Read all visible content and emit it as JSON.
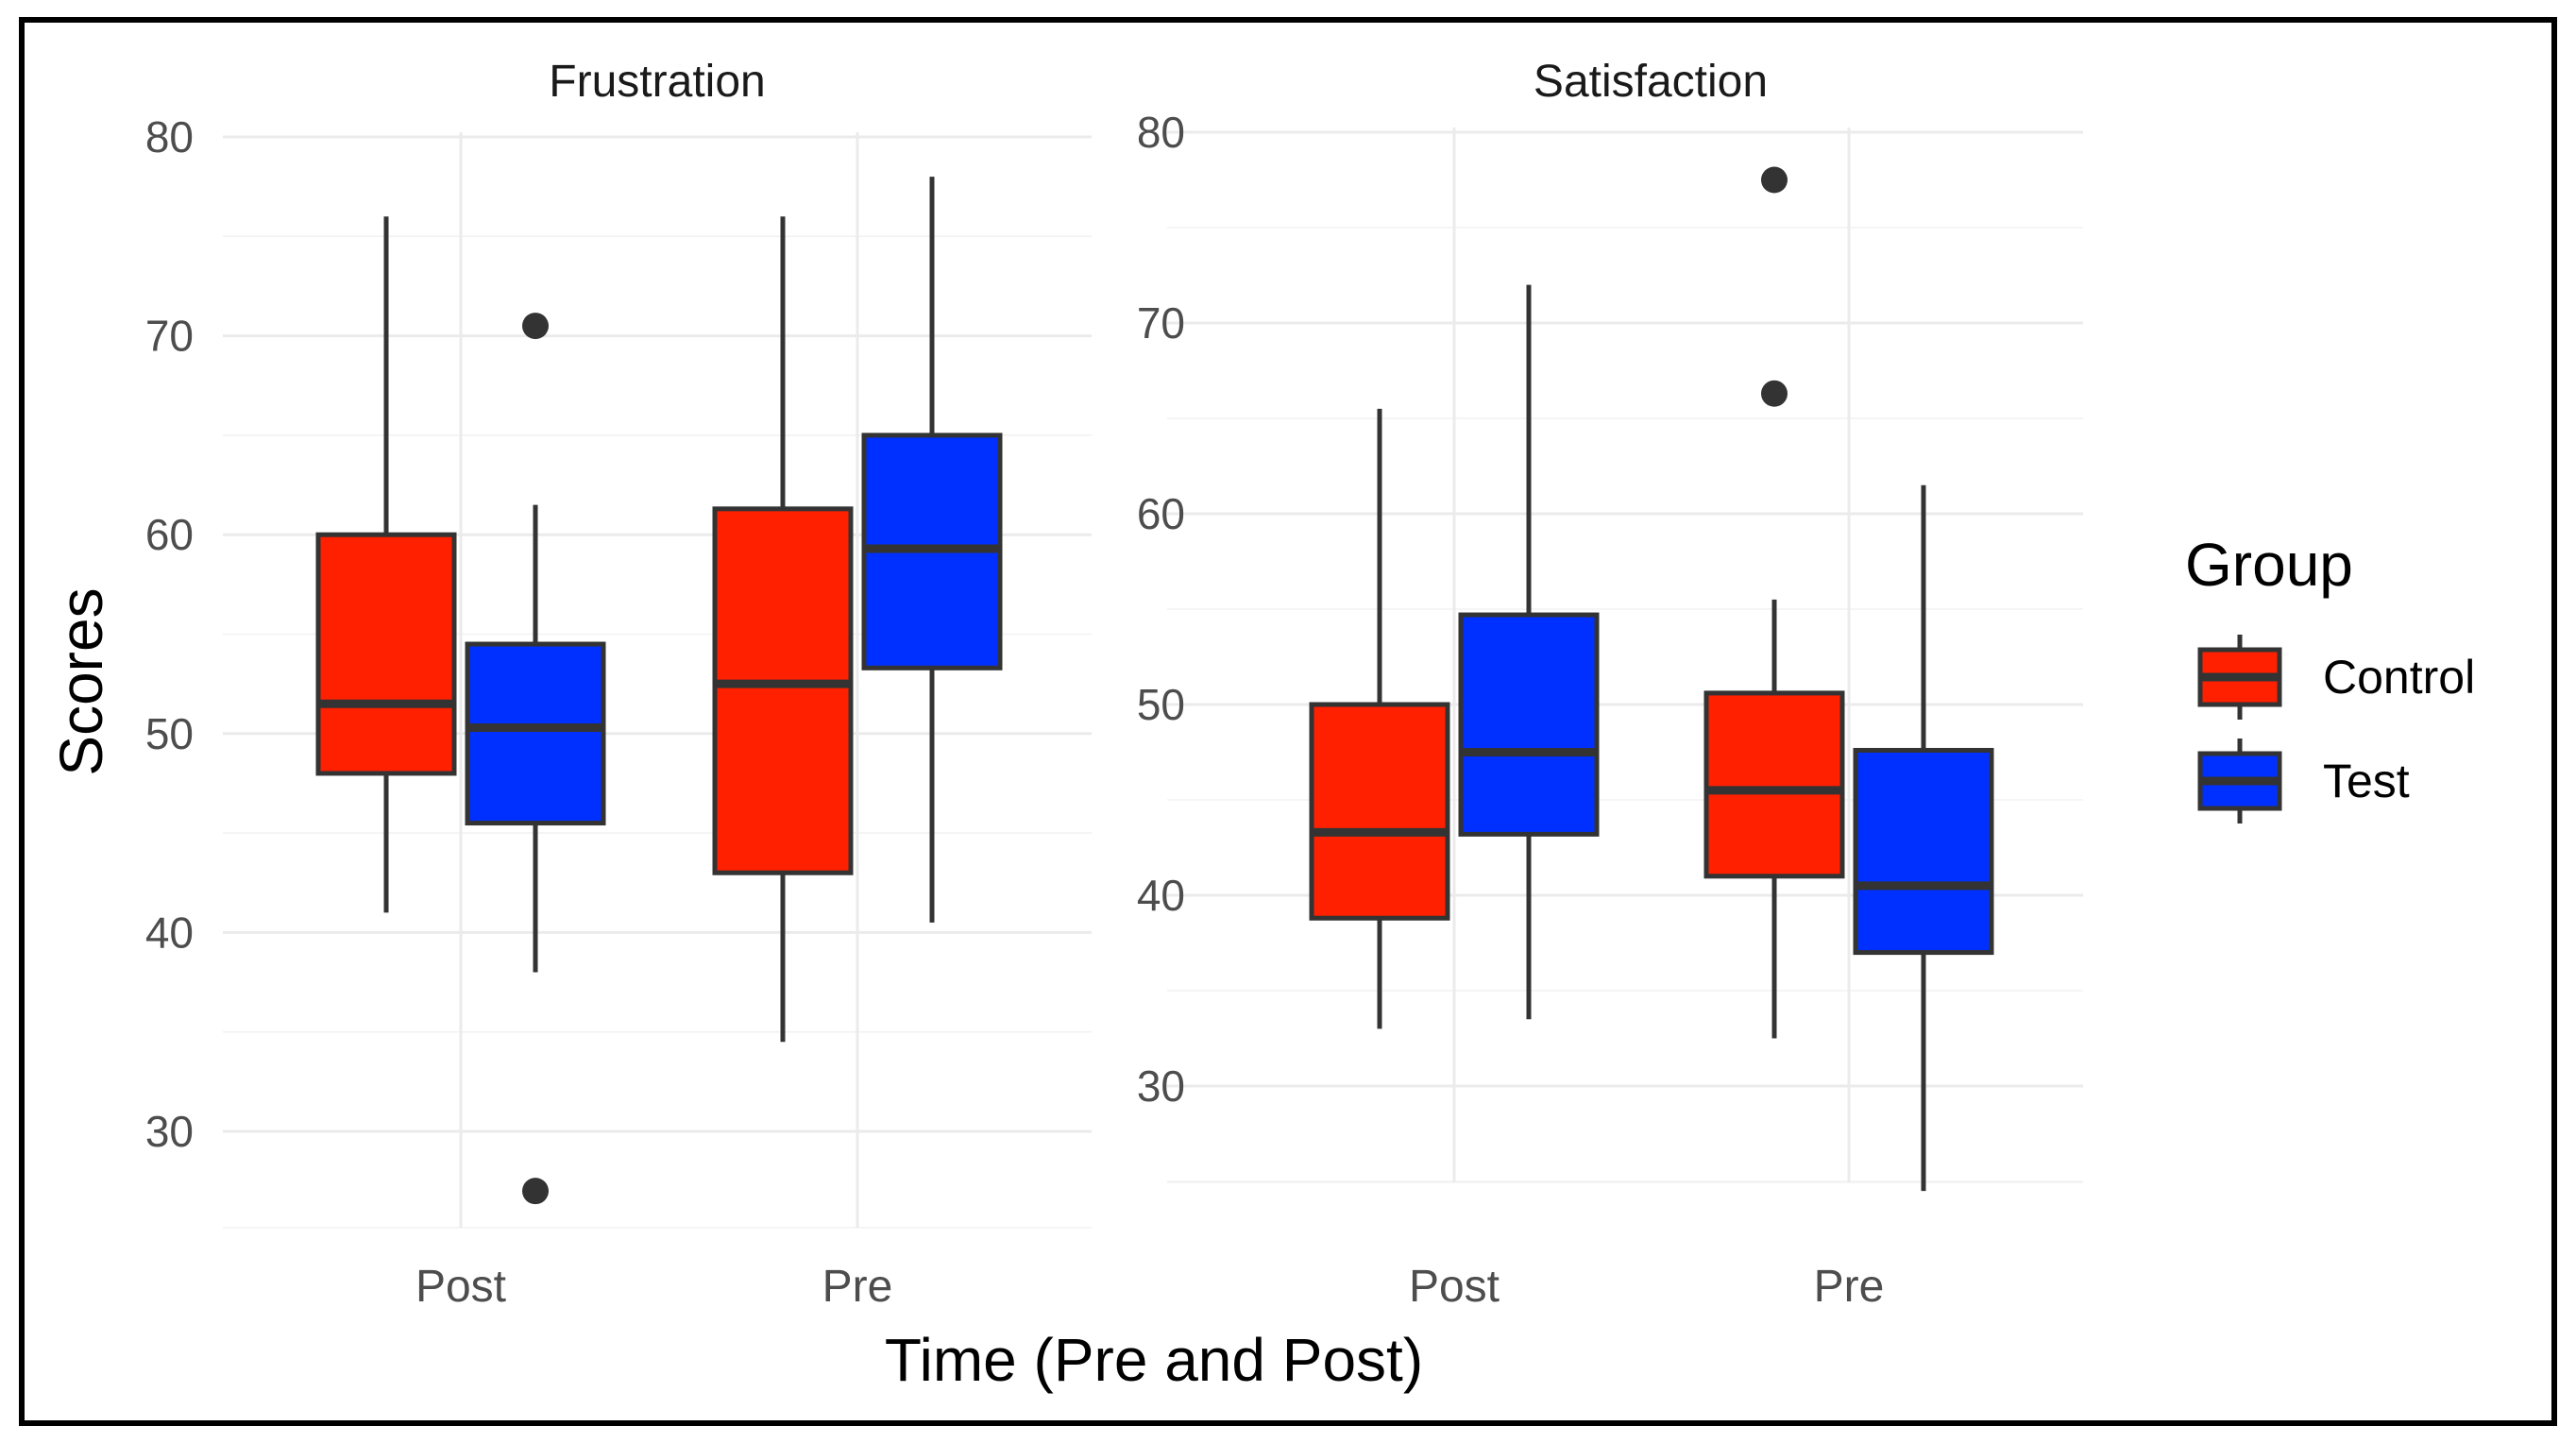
{
  "chart_data": {
    "type": "boxplot",
    "xlabel": "Time (Pre and Post)",
    "ylabel": "Scores",
    "legend": {
      "title": "Group",
      "position": "right",
      "entries": [
        {
          "name": "Control",
          "color": "#ff2000"
        },
        {
          "name": "Test",
          "color": "#0030ff"
        }
      ]
    },
    "categories": [
      "Post",
      "Pre"
    ],
    "groups": [
      "Control",
      "Test"
    ],
    "panels": [
      {
        "title": "Frustration",
        "ylim": [
          25,
          80
        ],
        "yticks": [
          "30",
          "40",
          "50",
          "60",
          "70",
          "80"
        ],
        "boxes": [
          {
            "category": "Post",
            "group": "Control",
            "min": 41,
            "q1": 48,
            "median": 51.5,
            "q3": 60,
            "max": 76,
            "outliers": []
          },
          {
            "category": "Post",
            "group": "Test",
            "min": 38,
            "q1": 45.5,
            "median": 50.3,
            "q3": 54.5,
            "max": 61.5,
            "outliers": [
              70.5,
              27
            ]
          },
          {
            "category": "Pre",
            "group": "Control",
            "min": 34.5,
            "q1": 43,
            "median": 52.5,
            "q3": 61.3,
            "max": 76,
            "outliers": []
          },
          {
            "category": "Pre",
            "group": "Test",
            "min": 40.5,
            "q1": 53.3,
            "median": 59.3,
            "q3": 65,
            "max": 78,
            "outliers": []
          }
        ]
      },
      {
        "title": "Satisfaction",
        "ylim": [
          25,
          80
        ],
        "yticks": [
          "30",
          "40",
          "50",
          "60",
          "70",
          "80"
        ],
        "boxes": [
          {
            "category": "Post",
            "group": "Control",
            "min": 33,
            "q1": 38.8,
            "median": 43.3,
            "q3": 50,
            "max": 65.5,
            "outliers": []
          },
          {
            "category": "Post",
            "group": "Test",
            "min": 33.5,
            "q1": 43.2,
            "median": 47.5,
            "q3": 54.7,
            "max": 72,
            "outliers": []
          },
          {
            "category": "Pre",
            "group": "Control",
            "min": 32.5,
            "q1": 41,
            "median": 45.5,
            "q3": 50.6,
            "max": 55.5,
            "outliers": [
              77.5,
              66.3
            ]
          },
          {
            "category": "Pre",
            "group": "Test",
            "min": 24.5,
            "q1": 37,
            "median": 40.5,
            "q3": 47.6,
            "max": 61.5,
            "outliers": []
          }
        ]
      }
    ]
  }
}
